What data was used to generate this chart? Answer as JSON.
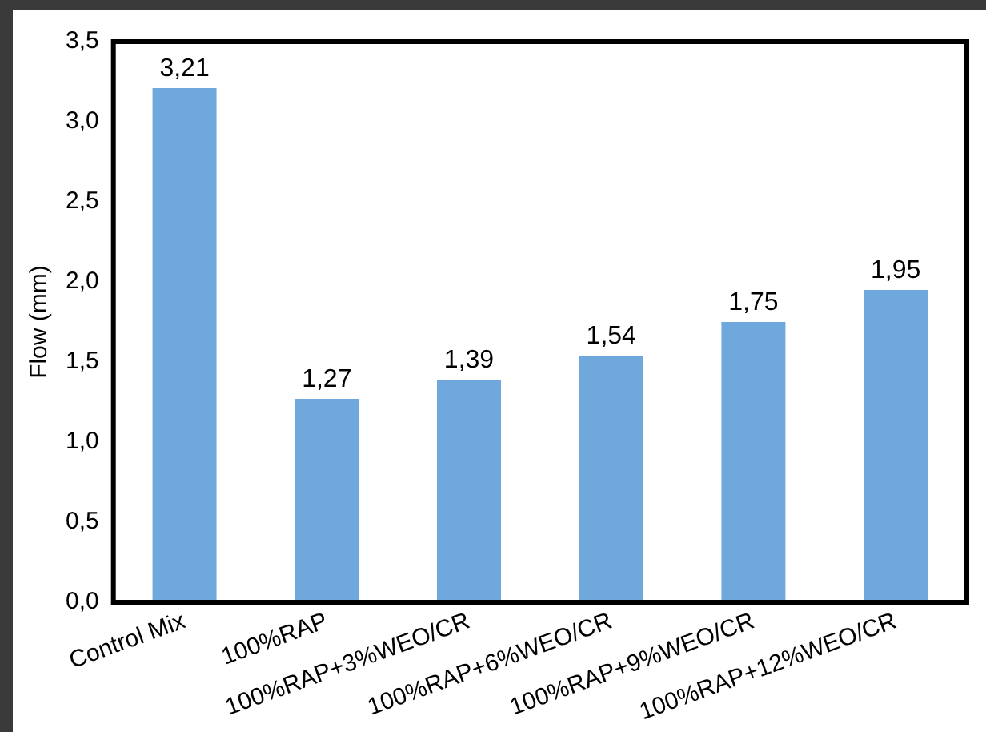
{
  "chart_data": {
    "type": "bar",
    "ylabel": "Flow (mm)",
    "categories": [
      "Control Mix",
      "100%RAP",
      "100%RAP+3%WEO/CR",
      "100%RAP+6%WEO/CR",
      "100%RAP+9%WEO/CR",
      "100%RAP+12%WEO/CR"
    ],
    "values": [
      3.21,
      1.27,
      1.39,
      1.54,
      1.75,
      1.95
    ],
    "value_labels": [
      "3,21",
      "1,27",
      "1,39",
      "1,54",
      "1,75",
      "1,95"
    ],
    "color": "#6fa8dc",
    "ylim": [
      0,
      3.5
    ],
    "yticks": [
      {
        "value": 0,
        "label": "0,0"
      },
      {
        "value": 0.5,
        "label": "0,5"
      },
      {
        "value": 1,
        "label": "1,0"
      },
      {
        "value": 1.5,
        "label": "1,5"
      },
      {
        "value": 2,
        "label": "2,0"
      },
      {
        "value": 2.5,
        "label": "2,5"
      },
      {
        "value": 3,
        "label": "3,0"
      },
      {
        "value": 3.5,
        "label": "3,5"
      }
    ],
    "grid": false,
    "legend": false
  }
}
